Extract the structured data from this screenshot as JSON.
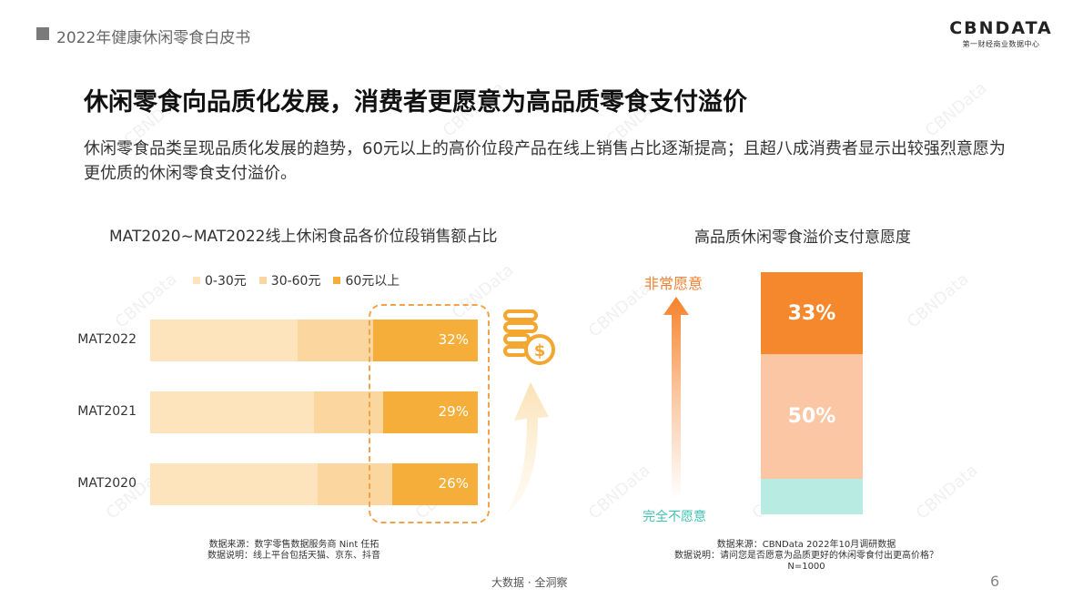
{
  "header": {
    "report_title": "2022年健康休闲零食白皮书"
  },
  "logo": {
    "main": "CBNDATA",
    "sub": "第一财经商业数据中心"
  },
  "headline": "休闲零食向品质化发展，消费者更愿意为高品质零食支付溢价",
  "description": "休闲零食品类呈现品质化发展的趋势，60元以上的高价位段产品在线上销售占比逐渐提高；且超八成消费者显示出较强烈意愿为更优质的休闲零食支付溢价。",
  "watermark": "CBNData",
  "left_chart": {
    "source_line1": "数据来源：数字零售数据服务商 Nint 任拓",
    "source_line2": "数据说明：线上平台包括天猫、京东、抖音"
  },
  "right_chart": {
    "label_top": "非常愿意",
    "label_bottom": "完全不愿意",
    "source_line1": "数据来源：CBNData 2022年10月调研数据",
    "source_line2": "数据说明：请问您是否愿意为品质更好的休闲零食付出更高价格？",
    "source_line3": "N=1000"
  },
  "footer": {
    "text": "大数据 · 全洞察",
    "page_number": "6"
  },
  "chart_data": [
    {
      "type": "bar",
      "orientation": "horizontal",
      "stacked": true,
      "title": "MAT2020~MAT2022线上休闲食品各价位段销售额占比",
      "legend_position": "top",
      "categories": [
        "MAT2022",
        "MAT2021",
        "MAT2020"
      ],
      "series": [
        {
          "name": "0-30元",
          "color": "#fde4bd",
          "values": [
            45,
            50,
            51
          ]
        },
        {
          "name": "30-60元",
          "color": "#fbd79f",
          "values": [
            23,
            21,
            23
          ]
        },
        {
          "name": "60元以上",
          "color": "#f6ae3a",
          "values": [
            32,
            29,
            26
          ]
        }
      ],
      "data_labels": [
        "32%",
        "29%",
        "26%"
      ]
    },
    {
      "type": "bar",
      "stacked": true,
      "title": "高品质休闲零食溢价支付意愿度",
      "segments": [
        {
          "value": 33,
          "label": "33%",
          "color": "#f5882c"
        },
        {
          "value": 50,
          "label": "50%",
          "color": "#fbc6a3"
        },
        {
          "value": 14,
          "label": "",
          "color": "#b8ebe2"
        }
      ]
    }
  ]
}
